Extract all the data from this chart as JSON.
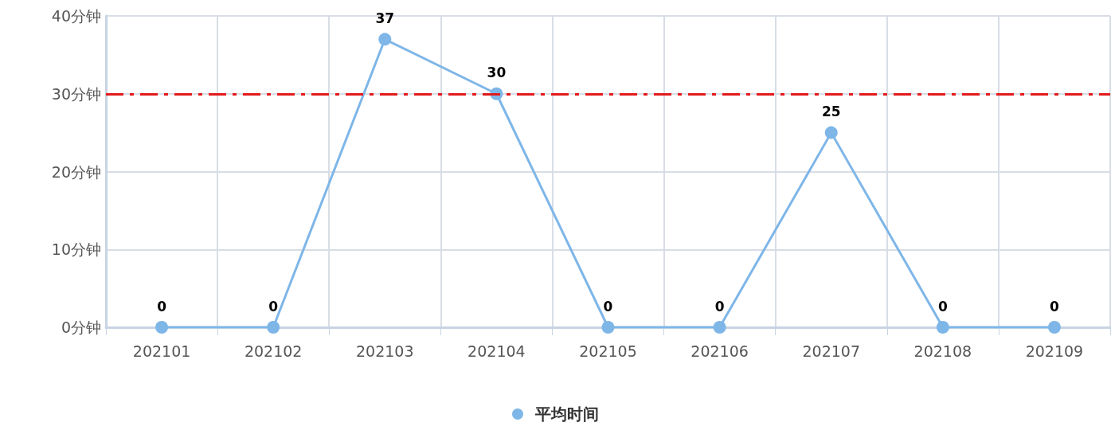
{
  "chart_data": {
    "type": "line",
    "categories": [
      "202101",
      "202102",
      "202103",
      "202104",
      "202105",
      "202106",
      "202107",
      "202108",
      "202109"
    ],
    "series": [
      {
        "name": "平均时间",
        "color": "#7eb6e8",
        "values": [
          0,
          0,
          37,
          30,
          0,
          0,
          25,
          0,
          0
        ]
      }
    ],
    "ylim": [
      0,
      40
    ],
    "yticks": [
      {
        "value": 0,
        "label": "0分钟"
      },
      {
        "value": 10,
        "label": "10分钟"
      },
      {
        "value": 20,
        "label": "20分钟"
      },
      {
        "value": 30,
        "label": "30分钟"
      },
      {
        "value": 40,
        "label": "40分钟"
      }
    ],
    "ref_lines": [
      {
        "axis": "y",
        "value": 30,
        "color": "#e31a1c",
        "line_style": "dashed"
      }
    ],
    "data_labels": true,
    "grid": true,
    "legend": "bottom",
    "marker": "circle",
    "line_style": "solid"
  }
}
